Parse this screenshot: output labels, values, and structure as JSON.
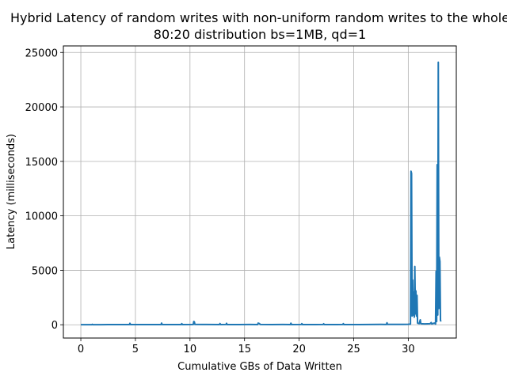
{
  "chart_data": {
    "type": "line",
    "title_line1": "Hybrid Latency of random writes with non-uniform random writes to the whole",
    "title_line2": "80:20 distribution bs=1MB, qd=1",
    "xlabel": "Cumulative GBs of Data Written",
    "ylabel": "Latency (milliseconds)",
    "xlim": [
      -1.6,
      34.4
    ],
    "ylim": [
      -1220,
      25600
    ],
    "x_ticks": [
      0,
      5,
      10,
      15,
      20,
      25,
      30
    ],
    "y_ticks": [
      0,
      5000,
      10000,
      15000,
      20000,
      25000
    ],
    "x_tick_labels": [
      "0",
      "5",
      "10",
      "15",
      "20",
      "25",
      "30"
    ],
    "y_tick_labels": [
      "0",
      "5000",
      "10000",
      "15000",
      "20000",
      "25000"
    ],
    "grid": true,
    "line_color": "#1f77b4",
    "series": [
      {
        "values": [
          [
            0,
            5
          ],
          [
            1.0,
            8
          ],
          [
            1.05,
            40
          ],
          [
            1.1,
            8
          ],
          [
            1.5,
            10
          ],
          [
            2.5,
            12
          ],
          [
            3.5,
            15
          ],
          [
            4.45,
            12
          ],
          [
            4.5,
            130
          ],
          [
            4.55,
            15
          ],
          [
            5.5,
            20
          ],
          [
            6.5,
            18
          ],
          [
            7.35,
            15
          ],
          [
            7.4,
            150
          ],
          [
            7.45,
            20
          ],
          [
            8.3,
            15
          ],
          [
            9.2,
            20
          ],
          [
            9.25,
            100
          ],
          [
            9.3,
            20
          ],
          [
            10.3,
            25
          ],
          [
            10.35,
            300
          ],
          [
            10.4,
            260
          ],
          [
            10.45,
            30
          ],
          [
            11.5,
            25
          ],
          [
            12.7,
            20
          ],
          [
            12.75,
            110
          ],
          [
            12.8,
            20
          ],
          [
            13.3,
            25
          ],
          [
            13.35,
            130
          ],
          [
            13.4,
            20
          ],
          [
            14.5,
            20
          ],
          [
            15.5,
            22
          ],
          [
            16.2,
            20
          ],
          [
            16.25,
            150
          ],
          [
            16.35,
            110
          ],
          [
            16.45,
            25
          ],
          [
            17.5,
            20
          ],
          [
            18.5,
            25
          ],
          [
            19.2,
            20
          ],
          [
            19.25,
            140
          ],
          [
            19.3,
            20
          ],
          [
            20.2,
            25
          ],
          [
            20.25,
            100
          ],
          [
            20.3,
            20
          ],
          [
            21.5,
            20
          ],
          [
            22.2,
            25
          ],
          [
            22.25,
            90
          ],
          [
            22.3,
            20
          ],
          [
            23.5,
            20
          ],
          [
            24.0,
            25
          ],
          [
            24.05,
            100
          ],
          [
            24.1,
            20
          ],
          [
            25.5,
            20
          ],
          [
            26.5,
            25
          ],
          [
            27.5,
            30
          ],
          [
            28.0,
            25
          ],
          [
            28.05,
            180
          ],
          [
            28.1,
            30
          ],
          [
            28.7,
            30
          ],
          [
            29.5,
            35
          ],
          [
            30.0,
            40
          ],
          [
            30.2,
            60
          ],
          [
            30.25,
            14100
          ],
          [
            30.3,
            13900
          ],
          [
            30.35,
            800
          ],
          [
            30.4,
            4100
          ],
          [
            30.45,
            900
          ],
          [
            30.5,
            3000
          ],
          [
            30.55,
            700
          ],
          [
            30.6,
            5350
          ],
          [
            30.65,
            1000
          ],
          [
            30.7,
            3100
          ],
          [
            30.75,
            800
          ],
          [
            30.8,
            2700
          ],
          [
            30.85,
            150
          ],
          [
            31.0,
            100
          ],
          [
            31.1,
            450
          ],
          [
            31.15,
            100
          ],
          [
            31.5,
            80
          ],
          [
            32.0,
            100
          ],
          [
            32.1,
            200
          ],
          [
            32.15,
            80
          ],
          [
            32.4,
            150
          ],
          [
            32.5,
            60
          ],
          [
            32.55,
            4900
          ],
          [
            32.6,
            300
          ],
          [
            32.65,
            14700
          ],
          [
            32.7,
            900
          ],
          [
            32.75,
            24100
          ],
          [
            32.8,
            1500
          ],
          [
            32.85,
            6200
          ],
          [
            32.9,
            5800
          ],
          [
            32.95,
            400
          ],
          [
            33.0,
            300
          ]
        ]
      }
    ]
  }
}
